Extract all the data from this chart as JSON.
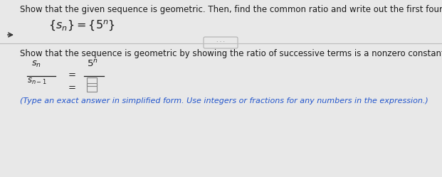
{
  "bg_color": "#e8e8e8",
  "white_bg": "#f5f5f5",
  "title_text": "Show that the given sequence is geometric. Then, find the common ratio and write out the first four terms.",
  "instruction_text": "Show that the sequence is geometric by showing the ratio of successive terms is a nonzero constant.",
  "footer_text": "(Type an exact answer in simplified form. Use integers or fractions for any numbers in the expression.)",
  "text_color": "#1a1a1a",
  "blue_color": "#2255cc",
  "divider_color": "#bbbbbb",
  "box_color": "#888888",
  "title_fontsize": 8.5,
  "seq_fontsize": 11.5,
  "instruction_fontsize": 8.5,
  "math_fontsize": 9.5,
  "footer_fontsize": 8.0
}
